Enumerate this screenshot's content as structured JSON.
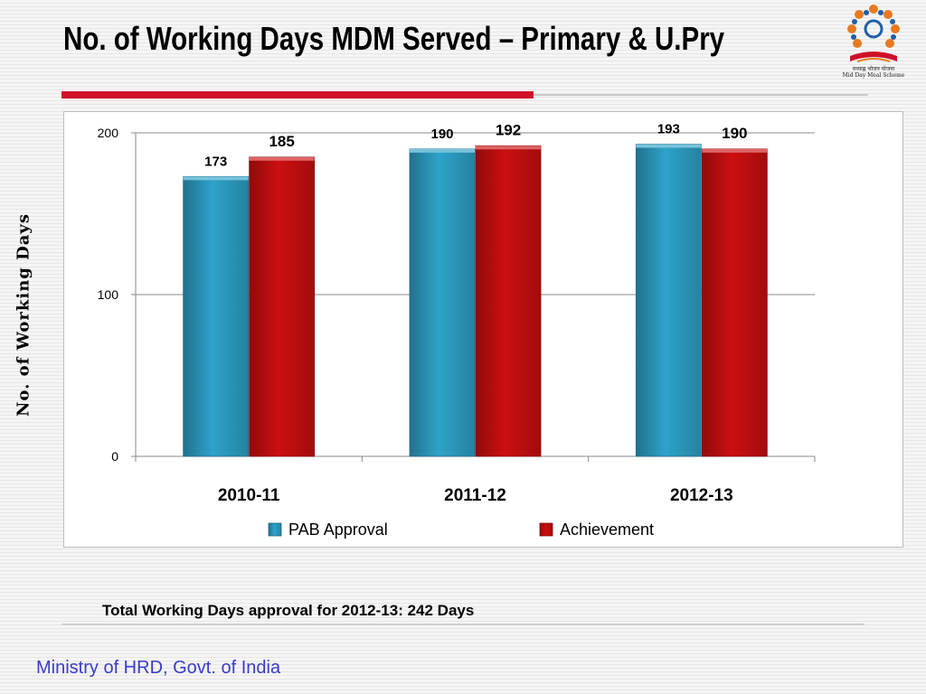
{
  "slide": {
    "title": "No. of Working Days MDM Served – Primary  & U.Pry",
    "logo_line1": "मध्याह्न भोजन योजना",
    "logo_line2": "Mid Day Meal Scheme",
    "footnote": "Total Working Days approval for 2012-13: 242 Days",
    "organization": "Ministry of HRD, Govt. of India"
  },
  "chart_data": {
    "type": "bar",
    "title": "",
    "ylabel": "No. of Working Days",
    "xlabel": "",
    "categories": [
      "2010-11",
      "2011-12",
      "2012-13"
    ],
    "series": [
      {
        "name": "PAB Approval",
        "values": [
          173,
          190,
          193
        ],
        "color": "#2ea3c9"
      },
      {
        "name": "Achievement",
        "values": [
          185,
          192,
          190
        ],
        "color": "#cc0f10"
      }
    ],
    "ylim": [
      0,
      200
    ],
    "yticks": [
      0,
      100,
      200
    ],
    "grid": true,
    "legend": "bottom"
  }
}
